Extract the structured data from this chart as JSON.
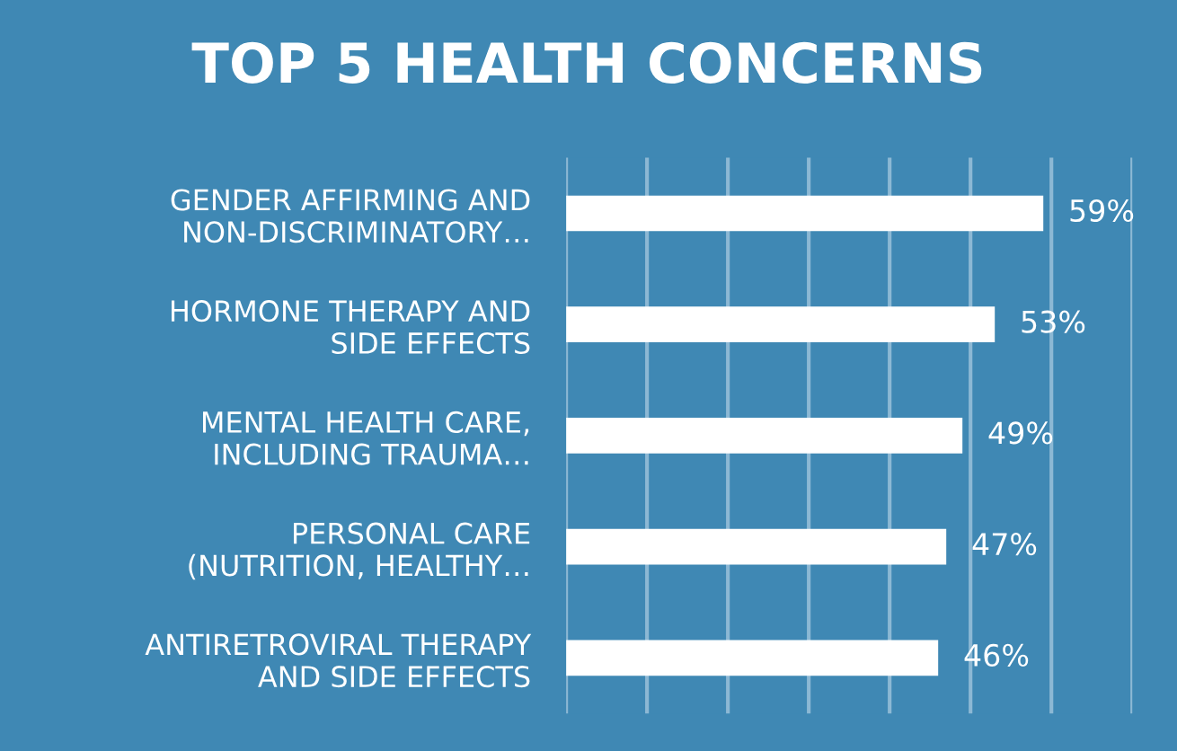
{
  "chart_data": {
    "type": "bar",
    "orientation": "horizontal",
    "title": "TOP 5 HEALTH CONCERNS",
    "categories": [
      "GENDER AFFIRMING AND\nNON-DISCRIMINATORY…",
      "HORMONE THERAPY AND\nSIDE EFFECTS",
      "MENTAL HEALTH CARE,\nINCLUDING TRAUMA…",
      "PERSONAL CARE\n(NUTRITION, HEALTHY…",
      "ANTIRETROVIRAL THERAPY\nAND SIDE EFFECTS"
    ],
    "values": [
      59,
      53,
      49,
      47,
      46
    ],
    "value_labels": [
      "59%",
      "53%",
      "49%",
      "47%",
      "46%"
    ],
    "color": "#ffffff",
    "xlim": [
      0,
      70
    ],
    "xticks": [
      {
        "value": 0,
        "label": null
      },
      {
        "value": 10,
        "label": null
      },
      {
        "value": 20,
        "label": null
      },
      {
        "value": 30,
        "label": null
      },
      {
        "value": 40,
        "label": null
      },
      {
        "value": 50,
        "label": null
      },
      {
        "value": 60,
        "label": null
      },
      {
        "value": 70,
        "label": null
      }
    ],
    "grid": "x",
    "tick_labels": "y"
  }
}
